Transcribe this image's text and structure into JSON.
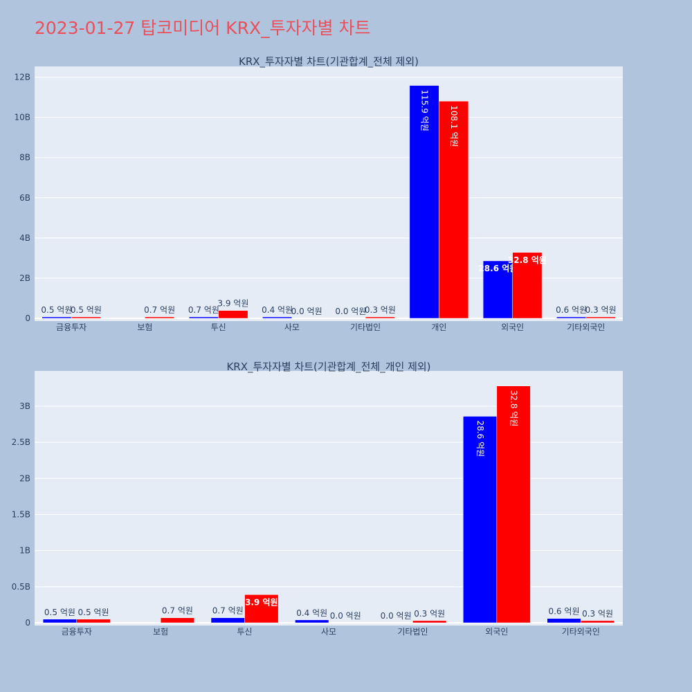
{
  "page": {
    "title": "2023-01-27 탑코미디어 KRX_투자자별 차트",
    "title_color": "#e8505b",
    "background": "#b0c4de",
    "plot_background": "#e5ecf6",
    "grid_color": "#ffffff",
    "text_color": "#2a3f5f",
    "series_colors": [
      "#0000ff",
      "#ff0000"
    ]
  },
  "chart_data": [
    {
      "type": "bar",
      "title": "KRX_투자자별 차트(기관합계_전체 제외)",
      "categories": [
        "금융투자",
        "보험",
        "투신",
        "사모",
        "기타법인",
        "개인",
        "외국인",
        "기타외국인"
      ],
      "series": [
        {
          "color": "#0000ff",
          "values": [
            50000000.0,
            null,
            70000000.0,
            40000000.0,
            0.0,
            11590000000.0,
            2860000000.0,
            60000000.0
          ],
          "labels": [
            "0.5 억원",
            "",
            "0.7 억원",
            "0.4 억원",
            "0.0 억원",
            "115.9 억원",
            "28.6 억원",
            "0.6 억원"
          ]
        },
        {
          "color": "#ff0000",
          "values": [
            50000000.0,
            70000000.0,
            390000000.0,
            0.0,
            30000000.0,
            10810000000.0,
            3280000000.0,
            30000000.0
          ],
          "labels": [
            "0.5 억원",
            "0.7 억원",
            "3.9 억원",
            "0.0 억원",
            "0.3 억원",
            "108.1 억원",
            "32.8 억원",
            "0.3 억원"
          ]
        }
      ],
      "yticks": [
        0,
        2000000000.0,
        4000000000.0,
        6000000000.0,
        8000000000.0,
        10000000000.0,
        12000000000.0
      ],
      "ytick_labels": [
        "0",
        "2B",
        "4B",
        "6B",
        "8B",
        "10B",
        "12B"
      ],
      "ylim": [
        0,
        12400000000.0
      ],
      "grid": true
    },
    {
      "type": "bar",
      "title": "KRX_투자자별 차트(기관합계_전체_개인 제외)",
      "categories": [
        "금융투자",
        "보험",
        "투신",
        "사모",
        "기타법인",
        "외국인",
        "기타외국인"
      ],
      "series": [
        {
          "color": "#0000ff",
          "values": [
            50000000.0,
            null,
            70000000.0,
            40000000.0,
            0.0,
            2860000000.0,
            60000000.0
          ],
          "labels": [
            "0.5 억원",
            "",
            "0.7 억원",
            "0.4 억원",
            "0.0 억원",
            "28.6 억원",
            "0.6 억원"
          ]
        },
        {
          "color": "#ff0000",
          "values": [
            50000000.0,
            70000000.0,
            390000000.0,
            0.0,
            30000000.0,
            3280000000.0,
            30000000.0
          ],
          "labels": [
            "0.5 억원",
            "0.7 억원",
            "3.9 억원",
            "0.0 억원",
            "0.3 억원",
            "32.8 억원",
            "0.3 억원"
          ]
        }
      ],
      "yticks": [
        0,
        500000000.0,
        1000000000.0,
        1500000000.0,
        2000000000.0,
        2500000000.0,
        3000000000.0
      ],
      "ytick_labels": [
        "0",
        "0.5B",
        "1B",
        "1.5B",
        "2B",
        "2.5B",
        "3B"
      ],
      "ylim": [
        0,
        3450000000.0
      ],
      "grid": true
    }
  ]
}
